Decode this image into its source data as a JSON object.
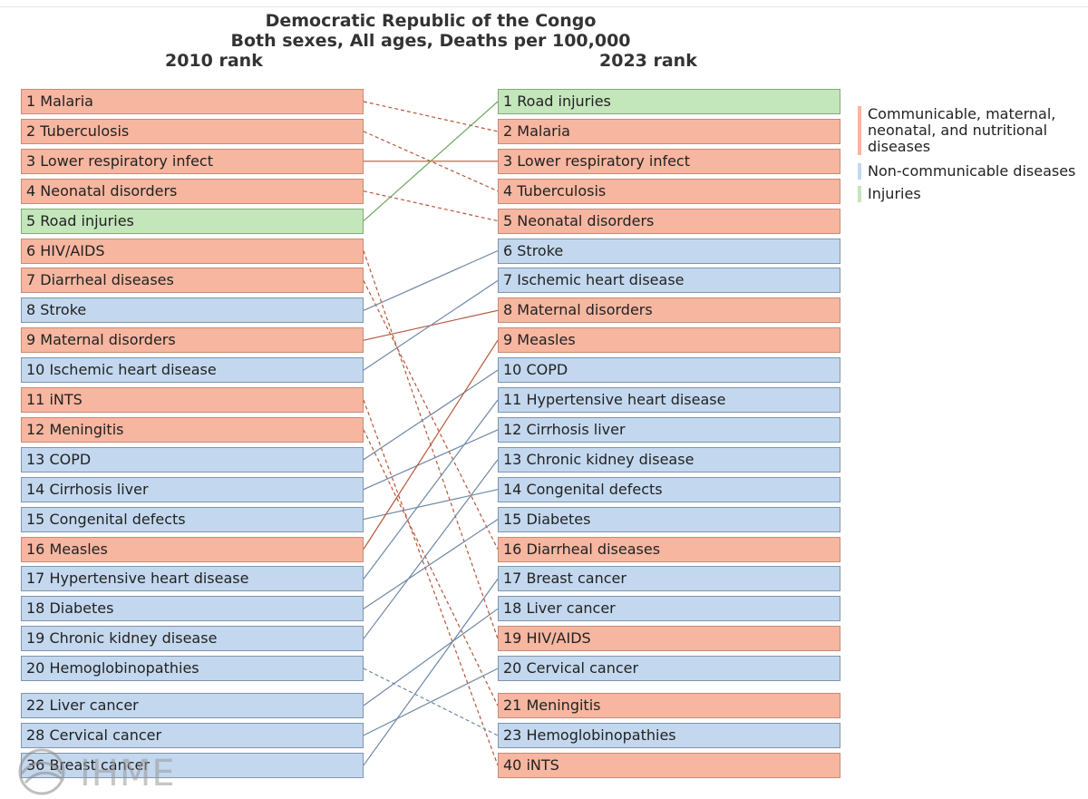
{
  "title_line1": "Democratic Republic of the Congo",
  "title_line2": "Both sexes, All ages, Deaths per 100,000",
  "left_header": "2010 rank",
  "right_header": "2023 rank",
  "colors": {
    "cmnn_fill": "#f6b6a0",
    "ncd_fill": "#c3d8ee",
    "inj_fill": "#c3e6bb",
    "cmnn_line": "#b5583a",
    "ncd_line": "#6f87a6",
    "inj_line": "#6aa65f"
  },
  "legend": [
    {
      "label": "Communicable, maternal, neonatal, and nutritional diseases",
      "category": "cmnn"
    },
    {
      "label": "Non-communicable diseases",
      "category": "ncd"
    },
    {
      "label": "Injuries",
      "category": "inj"
    }
  ],
  "left_items": [
    {
      "rank": 1,
      "label": "1 Malaria",
      "cause": "Malaria",
      "category": "cmnn"
    },
    {
      "rank": 2,
      "label": "2 Tuberculosis",
      "cause": "Tuberculosis",
      "category": "cmnn"
    },
    {
      "rank": 3,
      "label": "3 Lower respiratory infect",
      "cause": "Lower respiratory infect",
      "category": "cmnn"
    },
    {
      "rank": 4,
      "label": "4 Neonatal disorders",
      "cause": "Neonatal disorders",
      "category": "cmnn"
    },
    {
      "rank": 5,
      "label": "5 Road injuries",
      "cause": "Road injuries",
      "category": "inj"
    },
    {
      "rank": 6,
      "label": "6 HIV/AIDS",
      "cause": "HIV/AIDS",
      "category": "cmnn"
    },
    {
      "rank": 7,
      "label": "7 Diarrheal diseases",
      "cause": "Diarrheal diseases",
      "category": "cmnn"
    },
    {
      "rank": 8,
      "label": "8 Stroke",
      "cause": "Stroke",
      "category": "ncd"
    },
    {
      "rank": 9,
      "label": "9 Maternal disorders",
      "cause": "Maternal disorders",
      "category": "cmnn"
    },
    {
      "rank": 10,
      "label": "10 Ischemic heart disease",
      "cause": "Ischemic heart disease",
      "category": "ncd"
    },
    {
      "rank": 11,
      "label": "11 iNTS",
      "cause": "iNTS",
      "category": "cmnn"
    },
    {
      "rank": 12,
      "label": "12 Meningitis",
      "cause": "Meningitis",
      "category": "cmnn"
    },
    {
      "rank": 13,
      "label": "13 COPD",
      "cause": "COPD",
      "category": "ncd"
    },
    {
      "rank": 14,
      "label": "14 Cirrhosis liver",
      "cause": "Cirrhosis liver",
      "category": "ncd"
    },
    {
      "rank": 15,
      "label": "15 Congenital defects",
      "cause": "Congenital defects",
      "category": "ncd"
    },
    {
      "rank": 16,
      "label": "16 Measles",
      "cause": "Measles",
      "category": "cmnn"
    },
    {
      "rank": 17,
      "label": "17 Hypertensive heart disease",
      "cause": "Hypertensive heart disease",
      "category": "ncd"
    },
    {
      "rank": 18,
      "label": "18 Diabetes",
      "cause": "Diabetes",
      "category": "ncd"
    },
    {
      "rank": 19,
      "label": "19 Chronic kidney disease",
      "cause": "Chronic kidney disease",
      "category": "ncd"
    },
    {
      "rank": 20,
      "label": "20 Hemoglobinopathies",
      "cause": "Hemoglobinopathies",
      "category": "ncd"
    },
    {
      "rank": 22,
      "label": "22 Liver cancer",
      "cause": "Liver cancer",
      "category": "ncd"
    },
    {
      "rank": 28,
      "label": "28 Cervical cancer",
      "cause": "Cervical cancer",
      "category": "ncd"
    },
    {
      "rank": 36,
      "label": "36 Breast cancer",
      "cause": "Breast cancer",
      "category": "ncd"
    }
  ],
  "right_items": [
    {
      "rank": 1,
      "label": "1 Road injuries",
      "cause": "Road injuries",
      "category": "inj"
    },
    {
      "rank": 2,
      "label": "2 Malaria",
      "cause": "Malaria",
      "category": "cmnn"
    },
    {
      "rank": 3,
      "label": "3 Lower respiratory infect",
      "cause": "Lower respiratory infect",
      "category": "cmnn"
    },
    {
      "rank": 4,
      "label": "4 Tuberculosis",
      "cause": "Tuberculosis",
      "category": "cmnn"
    },
    {
      "rank": 5,
      "label": "5 Neonatal disorders",
      "cause": "Neonatal disorders",
      "category": "cmnn"
    },
    {
      "rank": 6,
      "label": "6 Stroke",
      "cause": "Stroke",
      "category": "ncd"
    },
    {
      "rank": 7,
      "label": "7 Ischemic heart disease",
      "cause": "Ischemic heart disease",
      "category": "ncd"
    },
    {
      "rank": 8,
      "label": "8 Maternal disorders",
      "cause": "Maternal disorders",
      "category": "cmnn"
    },
    {
      "rank": 9,
      "label": "9 Measles",
      "cause": "Measles",
      "category": "cmnn"
    },
    {
      "rank": 10,
      "label": "10 COPD",
      "cause": "COPD",
      "category": "ncd"
    },
    {
      "rank": 11,
      "label": "11 Hypertensive heart disease",
      "cause": "Hypertensive heart disease",
      "category": "ncd"
    },
    {
      "rank": 12,
      "label": "12 Cirrhosis liver",
      "cause": "Cirrhosis liver",
      "category": "ncd"
    },
    {
      "rank": 13,
      "label": "13 Chronic kidney disease",
      "cause": "Chronic kidney disease",
      "category": "ncd"
    },
    {
      "rank": 14,
      "label": "14 Congenital defects",
      "cause": "Congenital defects",
      "category": "ncd"
    },
    {
      "rank": 15,
      "label": "15 Diabetes",
      "cause": "Diabetes",
      "category": "ncd"
    },
    {
      "rank": 16,
      "label": "16 Diarrheal diseases",
      "cause": "Diarrheal diseases",
      "category": "cmnn"
    },
    {
      "rank": 17,
      "label": "17 Breast cancer",
      "cause": "Breast cancer",
      "category": "ncd"
    },
    {
      "rank": 18,
      "label": "18 Liver cancer",
      "cause": "Liver cancer",
      "category": "ncd"
    },
    {
      "rank": 19,
      "label": "19 HIV/AIDS",
      "cause": "HIV/AIDS",
      "category": "cmnn"
    },
    {
      "rank": 20,
      "label": "20 Cervical cancer",
      "cause": "Cervical cancer",
      "category": "ncd"
    },
    {
      "rank": 21,
      "label": "21 Meningitis",
      "cause": "Meningitis",
      "category": "cmnn"
    },
    {
      "rank": 23,
      "label": "23 Hemoglobinopathies",
      "cause": "Hemoglobinopathies",
      "category": "ncd"
    },
    {
      "rank": 40,
      "label": "40 iNTS",
      "cause": "iNTS",
      "category": "cmnn"
    }
  ],
  "watermark": {
    "text": "IHME",
    "icon": "ihme-globe-logo"
  }
}
